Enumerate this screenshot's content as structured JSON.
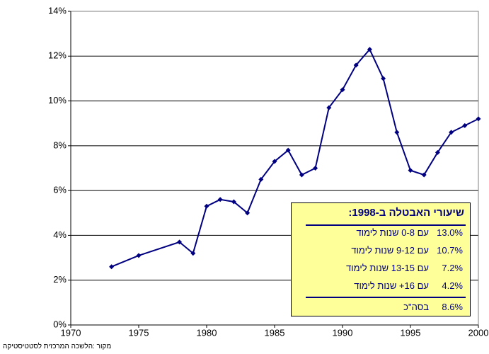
{
  "chart_data": {
    "type": "line",
    "x": [
      1973,
      1975,
      1978,
      1979,
      1980,
      1981,
      1982,
      1983,
      1984,
      1985,
      1986,
      1987,
      1988,
      1989,
      1990,
      1991,
      1992,
      1993,
      1994,
      1995,
      1996,
      1997,
      1998,
      1999,
      2000
    ],
    "series": [
      {
        "color": "#000080",
        "values": [
          2.6,
          3.1,
          3.7,
          3.2,
          5.3,
          5.6,
          5.5,
          5.0,
          6.5,
          7.3,
          7.8,
          6.7,
          7.0,
          9.7,
          10.5,
          11.6,
          12.3,
          11.0,
          8.6,
          6.9,
          6.7,
          7.7,
          8.6,
          8.9,
          9.2
        ]
      }
    ],
    "xlim": [
      1970,
      2000
    ],
    "xticks": [
      1970,
      1975,
      1980,
      1985,
      1990,
      1995,
      2000
    ],
    "ylim": [
      0,
      14
    ],
    "yticks": [
      {
        "value": 0,
        "label": "0%"
      },
      {
        "value": 2,
        "label": "2%"
      },
      {
        "value": 4,
        "label": "4%"
      },
      {
        "value": 6,
        "label": "6%"
      },
      {
        "value": 8,
        "label": "8%"
      },
      {
        "value": 10,
        "label": "10%"
      },
      {
        "value": 12,
        "label": "12%"
      },
      {
        "value": 14,
        "label": "14%"
      }
    ],
    "grid": true,
    "source": "מקור :הלשכה המרכזית לסטטיסטיקה",
    "inset": {
      "title": "שיעורי האבטלה ב-1998:",
      "rows": [
        {
          "label": "עם 0-8 שנות לימוד",
          "value": "13.0%"
        },
        {
          "label": "עם 9-12 שנות לימוד",
          "value": "10.7%"
        },
        {
          "label": "עם 13-15 שנות לימוד",
          "value": "7.2%"
        },
        {
          "label": "עם 16+ שנות לימוד",
          "value": "4.2%"
        }
      ],
      "total": {
        "label": "בסה\"כ",
        "value": "8.6%"
      }
    }
  }
}
